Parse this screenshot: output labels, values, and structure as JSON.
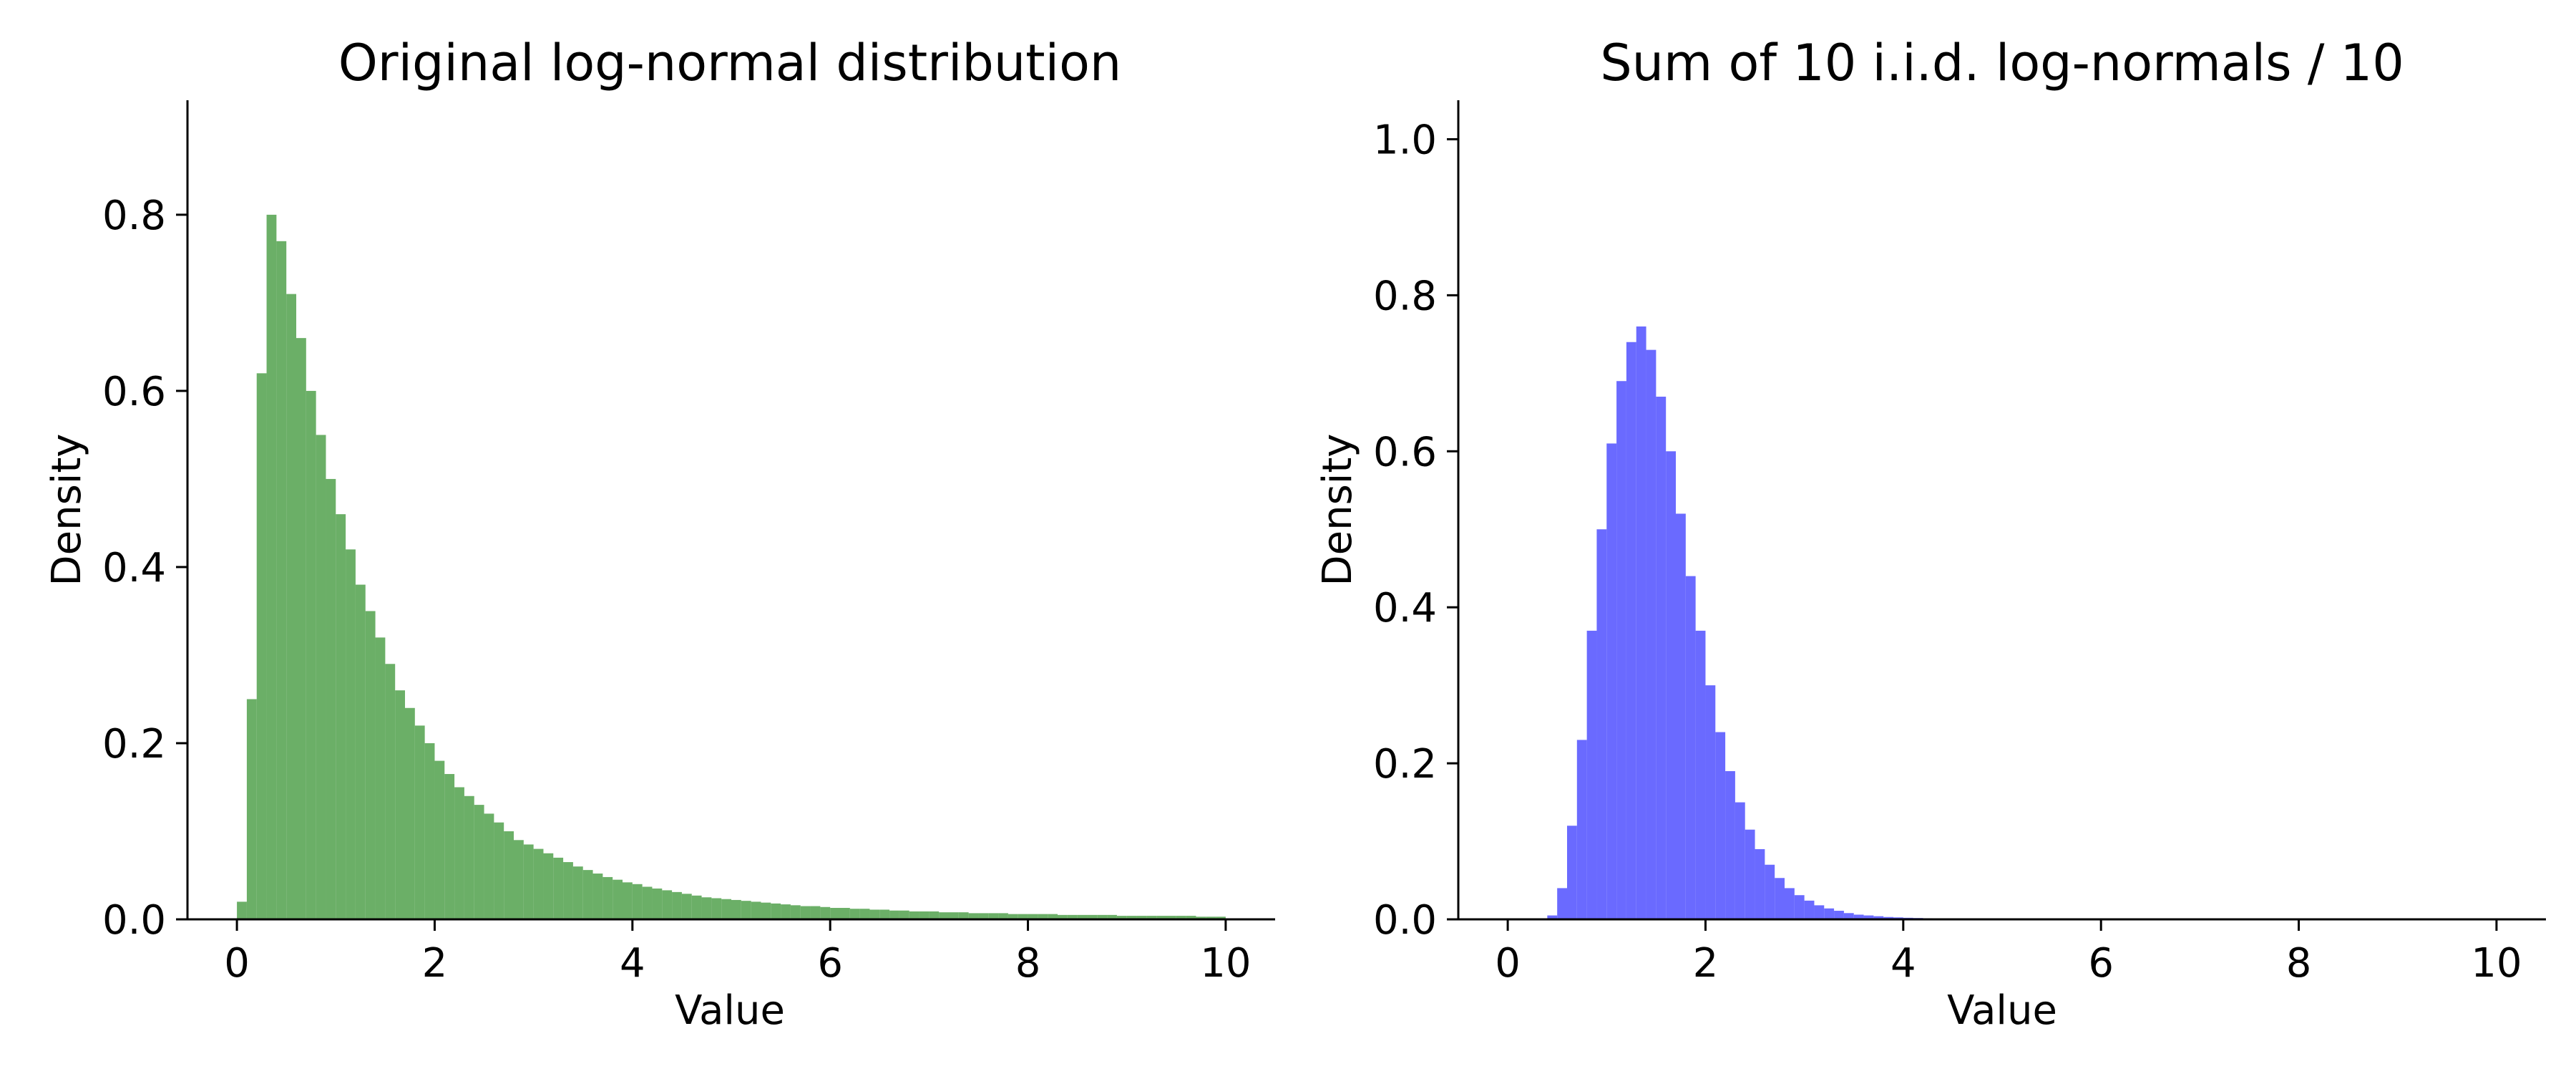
{
  "chart_data": [
    {
      "type": "bar",
      "title": "Original log-normal distribution",
      "xlabel": "Value",
      "ylabel": "Density",
      "xlim": [
        -0.5,
        10.5
      ],
      "ylim": [
        0,
        0.93
      ],
      "x_ticks": [
        0,
        2,
        4,
        6,
        8,
        10
      ],
      "y_ticks": [
        0.0,
        0.2,
        0.4,
        0.6,
        0.8
      ],
      "x_tick_labels": [
        "0",
        "2",
        "4",
        "6",
        "8",
        "10"
      ],
      "y_tick_labels": [
        "0.0",
        "0.2",
        "0.4",
        "0.6",
        "0.8"
      ],
      "color": "#4a9e45",
      "opacity": 0.82,
      "grid": false,
      "bins": {
        "start": 0.0,
        "width": 0.1,
        "values": [
          0.02,
          0.25,
          0.62,
          0.8,
          0.77,
          0.71,
          0.66,
          0.6,
          0.55,
          0.5,
          0.46,
          0.42,
          0.38,
          0.35,
          0.32,
          0.29,
          0.26,
          0.24,
          0.22,
          0.2,
          0.18,
          0.165,
          0.15,
          0.14,
          0.13,
          0.12,
          0.11,
          0.1,
          0.09,
          0.085,
          0.08,
          0.075,
          0.07,
          0.065,
          0.06,
          0.056,
          0.052,
          0.048,
          0.045,
          0.042,
          0.04,
          0.037,
          0.035,
          0.033,
          0.031,
          0.029,
          0.027,
          0.025,
          0.024,
          0.023,
          0.022,
          0.021,
          0.02,
          0.019,
          0.018,
          0.017,
          0.016,
          0.015,
          0.015,
          0.014,
          0.013,
          0.013,
          0.012,
          0.012,
          0.011,
          0.011,
          0.01,
          0.01,
          0.009,
          0.009,
          0.009,
          0.008,
          0.008,
          0.008,
          0.007,
          0.007,
          0.007,
          0.007,
          0.006,
          0.006,
          0.006,
          0.006,
          0.006,
          0.005,
          0.005,
          0.005,
          0.005,
          0.005,
          0.005,
          0.004,
          0.004,
          0.004,
          0.004,
          0.004,
          0.004,
          0.004,
          0.004,
          0.003,
          0.003,
          0.003
        ]
      }
    },
    {
      "type": "bar",
      "title": "Sum of 10 i.i.d. log-normals / 10",
      "xlabel": "Value",
      "ylabel": "Density",
      "xlim": [
        -0.5,
        10.5
      ],
      "ylim": [
        0,
        1.05
      ],
      "x_ticks": [
        0,
        2,
        4,
        6,
        8,
        10
      ],
      "y_ticks": [
        0.0,
        0.2,
        0.4,
        0.6,
        0.8,
        1.0
      ],
      "x_tick_labels": [
        "0",
        "2",
        "4",
        "6",
        "8",
        "10"
      ],
      "y_tick_labels": [
        "0.0",
        "0.2",
        "0.4",
        "0.6",
        "0.8",
        "1.0"
      ],
      "color": "#5a5aff",
      "opacity": 0.9,
      "grid": false,
      "bins": {
        "start": 0.0,
        "width": 0.1,
        "values": [
          0,
          0,
          0,
          0,
          0.005,
          0.04,
          0.12,
          0.23,
          0.37,
          0.5,
          0.61,
          0.69,
          0.74,
          0.76,
          0.73,
          0.67,
          0.6,
          0.52,
          0.44,
          0.37,
          0.3,
          0.24,
          0.19,
          0.15,
          0.115,
          0.09,
          0.07,
          0.053,
          0.04,
          0.031,
          0.024,
          0.018,
          0.014,
          0.011,
          0.008,
          0.006,
          0.005,
          0.004,
          0.003,
          0.0025,
          0.002,
          0.0017,
          0.0014,
          0.0012,
          0.001,
          0.0009,
          0.0008,
          0.0007,
          0.0006,
          0.0005,
          0.0004,
          0.0004,
          0.0003,
          0.0003,
          0.0003,
          0.0002,
          0.0002,
          0.0002,
          0.0002,
          0.0001,
          0.0001,
          0.0001,
          0,
          0,
          0,
          0,
          0,
          0,
          0,
          0,
          0,
          0,
          0,
          0,
          0,
          0,
          0,
          0,
          0,
          0,
          0,
          0,
          0,
          0,
          0,
          0,
          0,
          0,
          0,
          0,
          0,
          0,
          0,
          0,
          0,
          0,
          0,
          0,
          0,
          0
        ]
      }
    }
  ]
}
